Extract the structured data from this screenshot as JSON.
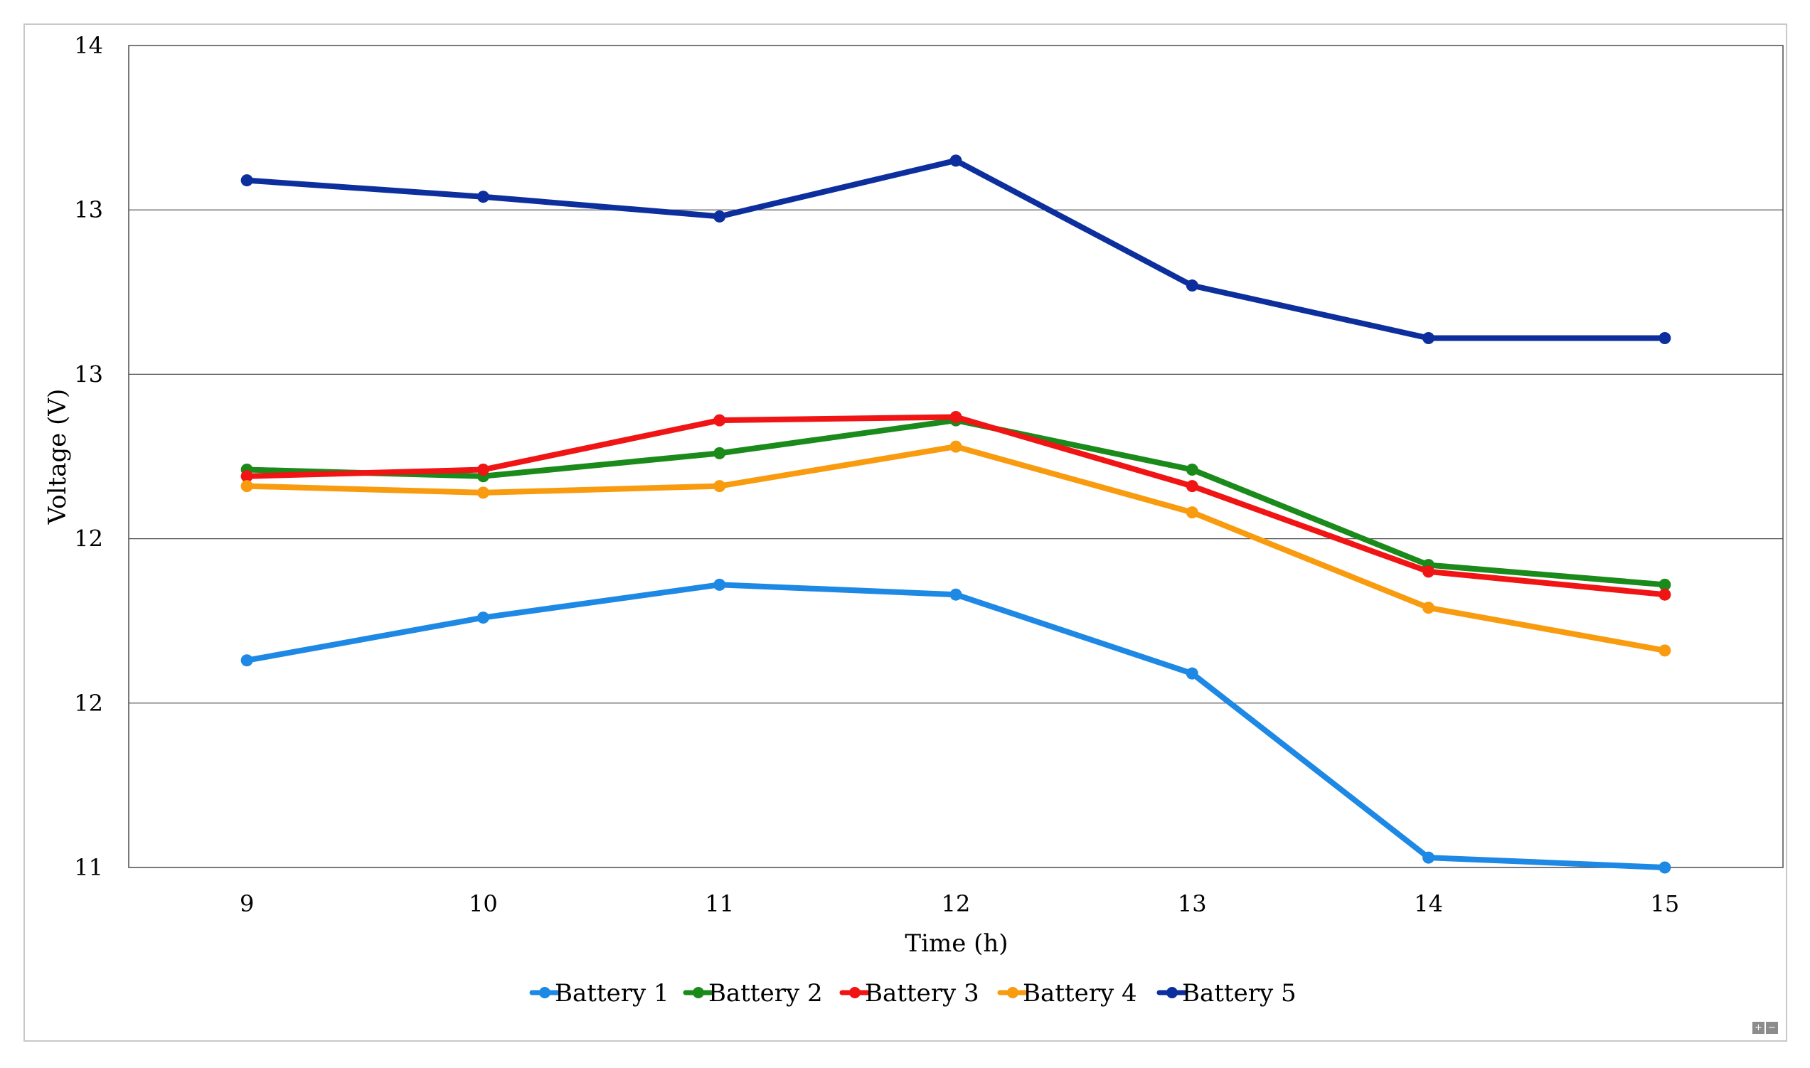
{
  "chart_data": {
    "type": "line",
    "title": "",
    "xlabel": "Time (h)",
    "ylabel": "Voltage (V)",
    "x": [
      9,
      10,
      11,
      12,
      13,
      14,
      15
    ],
    "y_tick_labels": [
      "11",
      "12",
      "12",
      "13",
      "13",
      "14"
    ],
    "ylim": [
      11,
      13.5
    ],
    "grid": true,
    "legend_position": "bottom",
    "series": [
      {
        "name": "Battery 1",
        "color": "#1e88e5",
        "values": [
          11.63,
          11.76,
          11.86,
          11.83,
          11.59,
          11.03,
          11.0
        ]
      },
      {
        "name": "Battery 2",
        "color": "#1a8a1a",
        "values": [
          12.21,
          12.19,
          12.26,
          12.36,
          12.21,
          11.92,
          11.86
        ]
      },
      {
        "name": "Battery 3",
        "color": "#f01414",
        "values": [
          12.19,
          12.21,
          12.36,
          12.37,
          12.16,
          11.9,
          11.83
        ]
      },
      {
        "name": "Battery 4",
        "color": "#f99b0f",
        "values": [
          12.16,
          12.14,
          12.16,
          12.28,
          12.08,
          11.79,
          11.66
        ]
      },
      {
        "name": "Battery 5",
        "color": "#0d2f9e",
        "values": [
          13.09,
          13.04,
          12.98,
          13.15,
          12.77,
          12.61,
          12.61
        ]
      }
    ]
  },
  "zoom": {
    "in_label": "+",
    "out_label": "−"
  }
}
